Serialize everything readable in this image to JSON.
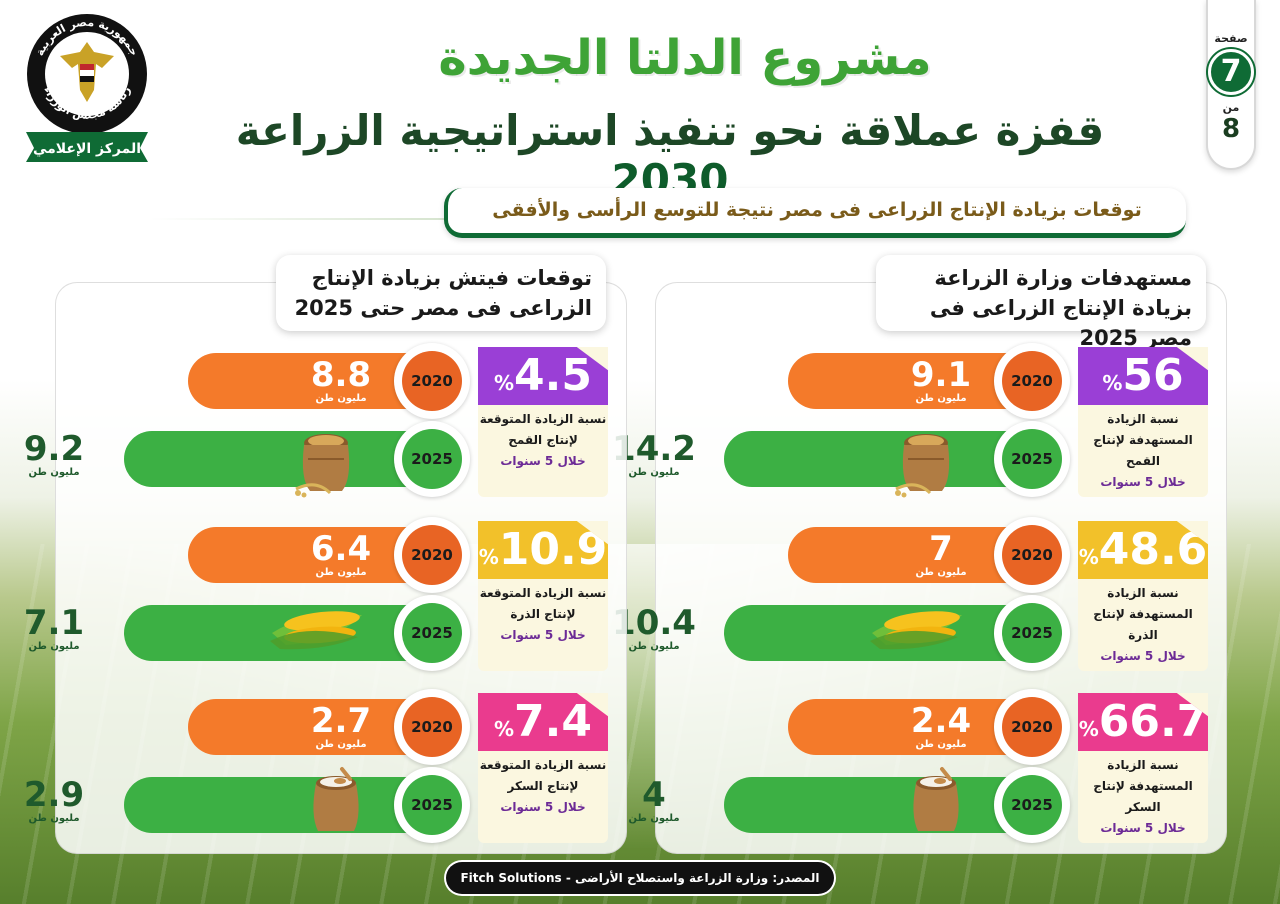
{
  "header": {
    "logo_text_top": "جمهورية مصر العربية",
    "logo_text_mid": "رئاسة مجلس الوزراء",
    "logo_text_bottom": "المركز الإعلامي",
    "title": "مشروع الدلتا الجديدة",
    "subtitle": "قفزة عملاقة نحو تنفيذ استراتيجية الزراعة",
    "subtitle_year": "2030"
  },
  "page": {
    "label": "صفحة",
    "current": "7",
    "of": "من",
    "total": "8"
  },
  "ribbon": "توقعات بزيادة الإنتاج الزراعى فى مصر نتيجة للتوسع الرأسى والأفقى",
  "panels": {
    "ministry": {
      "title": "مستهدفات وزارة الزراعة بزيادة الإنتاج الزراعى فى مصر 2025",
      "items": [
        {
          "pct": "56",
          "pct_sign": "%",
          "desc": "نسبة الزيادة المستهدفة لإنتاج القمح",
          "period": "خلال 5 سنوات",
          "year_a": "2020",
          "val_a": "9.1",
          "year_b": "2025",
          "val_b": "14.2",
          "unit": "مليون طن",
          "product": "wheat-sack"
        },
        {
          "pct": "48.6",
          "pct_sign": "%",
          "desc": "نسبة الزيادة المستهدفة لإنتاج الذرة",
          "period": "خلال 5 سنوات",
          "year_a": "2020",
          "val_a": "7",
          "year_b": "2025",
          "val_b": "10.4",
          "unit": "مليون طن",
          "product": "corn"
        },
        {
          "pct": "66.7",
          "pct_sign": "%",
          "desc": "نسبة الزيادة المستهدفة لإنتاج السكر",
          "period": "خلال 5 سنوات",
          "year_a": "2020",
          "val_a": "2.4",
          "year_b": "2025",
          "val_b": "4",
          "unit": "مليون طن",
          "product": "sugar-sack"
        }
      ]
    },
    "fitch": {
      "title": "توقعات فيتش بزيادة الإنتاج الزراعى فى مصر حتى 2025",
      "items": [
        {
          "pct": "4.5",
          "pct_sign": "%",
          "desc": "نسبة الزيادة المتوقعة لإنتاج القمح",
          "period": "خلال 5 سنوات",
          "year_a": "2020",
          "val_a": "8.8",
          "year_b": "2025",
          "val_b": "9.2",
          "unit": "مليون طن",
          "product": "wheat-sack"
        },
        {
          "pct": "10.9",
          "pct_sign": "%",
          "desc": "نسبة الزيادة المتوقعة لإنتاج الذرة",
          "period": "خلال 5 سنوات",
          "year_a": "2020",
          "val_a": "6.4",
          "year_b": "2025",
          "val_b": "7.1",
          "unit": "مليون طن",
          "product": "corn"
        },
        {
          "pct": "7.4",
          "pct_sign": "%",
          "desc": "نسبة الزيادة المتوقعة لإنتاج السكر",
          "period": "خلال 5 سنوات",
          "year_a": "2020",
          "val_a": "2.7",
          "year_b": "2025",
          "val_b": "2.9",
          "unit": "مليون طن",
          "product": "sugar-sack"
        }
      ]
    }
  },
  "colors": {
    "orange": "#f47a2a",
    "green": "#3cb044",
    "purple": "#9a3fd6",
    "yellow": "#f2c12a",
    "pink": "#ea3b8e",
    "dark_green": "#0f6b35"
  },
  "source": "المصدر: وزارة الزراعة واستصلاح الأراضى - Fitch Solutions"
}
